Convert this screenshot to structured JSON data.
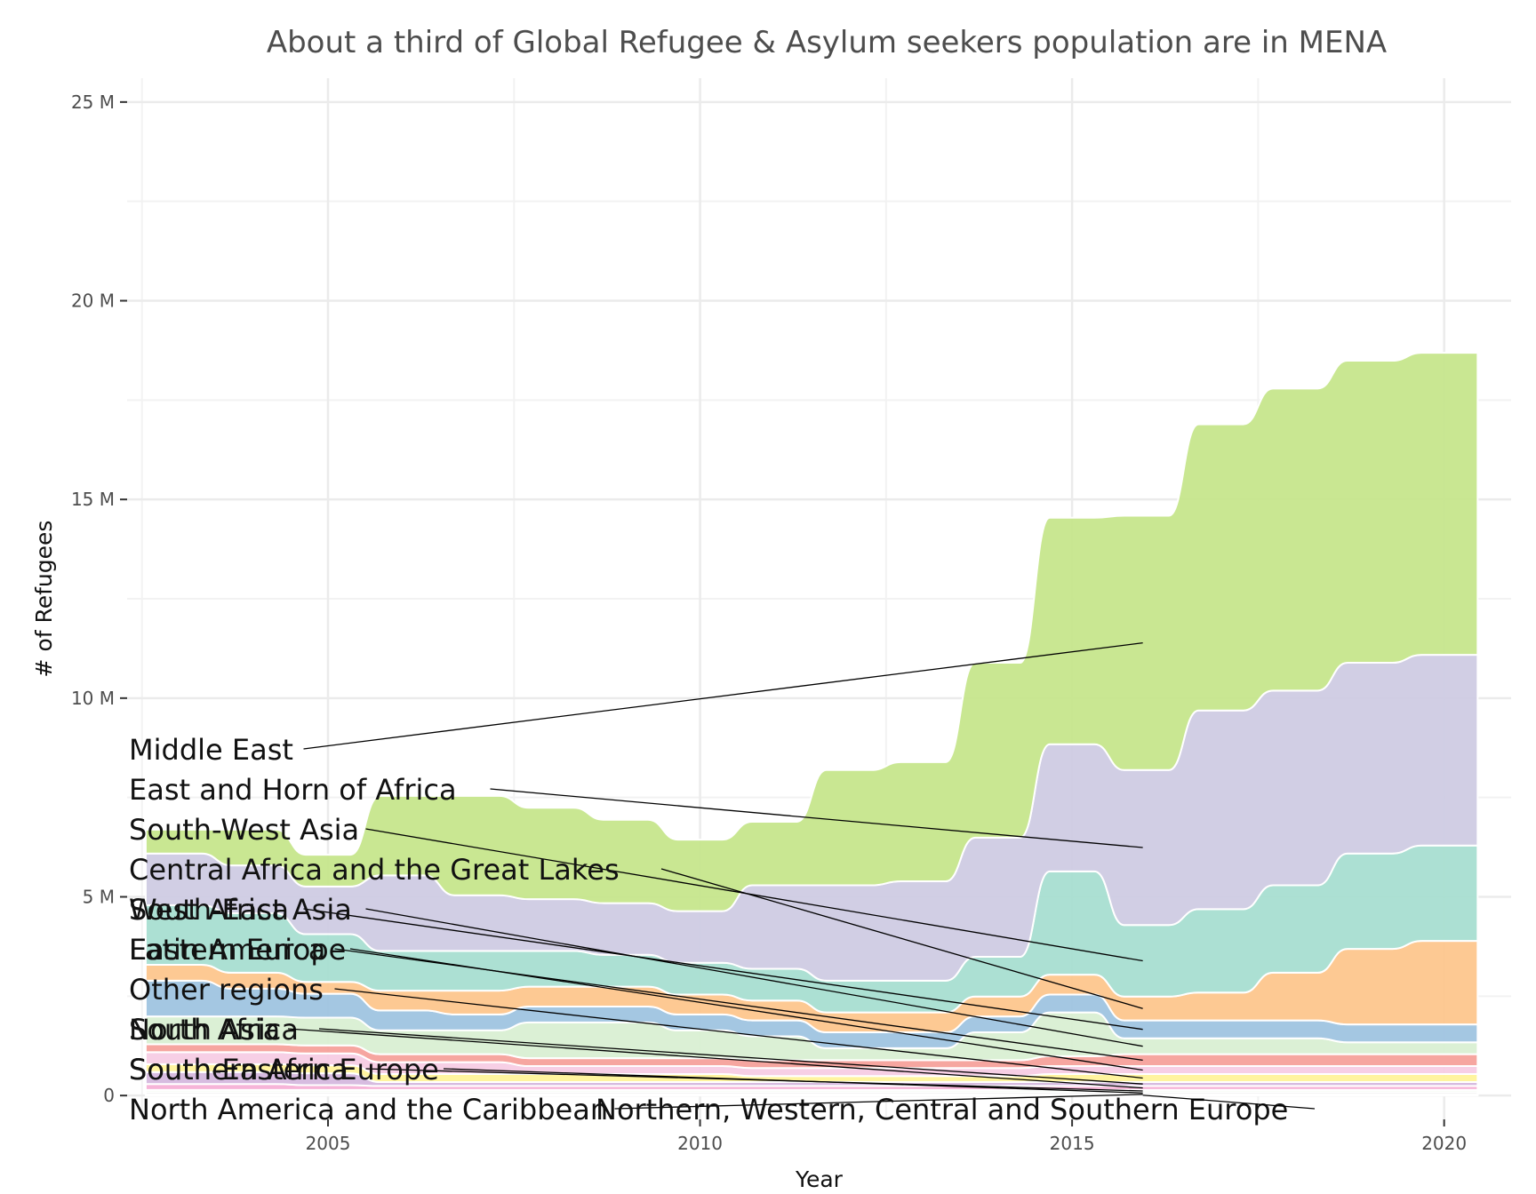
{
  "chart_data": {
    "type": "area",
    "subtype": "bump-stream",
    "title": "About a third of Global Refugee & Asylum seekers population are in MENA",
    "xlabel": "Year",
    "ylabel": "# of Refugees",
    "xlim": [
      2002.3,
      2020.9
    ],
    "ylim": [
      -0.6,
      25.6
    ],
    "x_ticks": [
      2005,
      2010,
      2015,
      2020
    ],
    "x_tick_labels": [
      "2005",
      "2010",
      "2015",
      "2020"
    ],
    "y_ticks": [
      0,
      5,
      10,
      15,
      20,
      25
    ],
    "y_tick_labels": [
      "0",
      "5 M",
      "10 M",
      "15 M",
      "20 M",
      "25 M"
    ],
    "grid": true,
    "legend": "none",
    "label_x": 2015.95,
    "x": [
      2003,
      2004,
      2005,
      2006,
      2007,
      2008,
      2009,
      2010,
      2011,
      2012,
      2013,
      2014,
      2015,
      2016,
      2017,
      2018,
      2019,
      2020
    ],
    "series": [
      {
        "name": "Middle East",
        "color": "#c6e68c",
        "values": [
          0.6,
          0.9,
          0.8,
          2.0,
          2.5,
          2.3,
          2.1,
          1.8,
          1.6,
          2.9,
          3.0,
          4.4,
          5.7,
          6.4,
          7.2,
          7.6,
          7.6,
          7.6
        ]
      },
      {
        "name": "East and Horn of Africa",
        "color": "#cfcbe3",
        "values": [
          1.3,
          1.2,
          1.2,
          1.9,
          1.4,
          1.3,
          1.3,
          1.3,
          2.1,
          2.4,
          2.5,
          3.0,
          3.2,
          3.9,
          5.0,
          4.9,
          4.8,
          4.8
        ]
      },
      {
        "name": "South-West Asia",
        "color": "#a8ded1",
        "values": [
          1.5,
          1.5,
          1.2,
          1.0,
          1.0,
          0.9,
          0.8,
          0.8,
          0.8,
          0.8,
          0.8,
          1.0,
          2.6,
          1.8,
          2.1,
          2.2,
          2.4,
          2.4
        ]
      },
      {
        "name": "Central Africa and the Great Lakes",
        "color": "#fdc68d",
        "values": [
          0.4,
          0.4,
          0.3,
          0.5,
          0.6,
          0.5,
          0.5,
          0.5,
          0.5,
          0.5,
          0.5,
          0.5,
          0.5,
          0.6,
          0.7,
          1.2,
          1.9,
          2.1
        ]
      },
      {
        "name": "West Africa",
        "color": "#9fc4e0",
        "values": [
          0.9,
          0.7,
          0.6,
          0.5,
          0.4,
          0.4,
          0.4,
          0.4,
          0.4,
          0.4,
          0.4,
          0.4,
          0.45,
          0.45,
          0.45,
          0.45,
          0.45,
          0.45
        ]
      },
      {
        "name": "South-East Asia",
        "color": "#d9efd3",
        "values": [
          0.7,
          0.7,
          0.7,
          0.6,
          0.6,
          0.9,
          0.9,
          0.7,
          0.6,
          0.3,
          0.3,
          0.7,
          1.1,
          0.4,
          0.4,
          0.4,
          0.3,
          0.3
        ]
      },
      {
        "name": "Latin America",
        "color": "#f5a19b",
        "values": [
          0.2,
          0.2,
          0.2,
          0.2,
          0.2,
          0.2,
          0.2,
          0.2,
          0.2,
          0.2,
          0.2,
          0.2,
          0.25,
          0.3,
          0.3,
          0.3,
          0.3,
          0.3
        ]
      },
      {
        "name": "Eastern Europe",
        "color": "#f7cce4",
        "values": [
          0.3,
          0.3,
          0.3,
          0.3,
          0.3,
          0.2,
          0.2,
          0.2,
          0.2,
          0.2,
          0.2,
          0.2,
          0.2,
          0.2,
          0.2,
          0.2,
          0.2,
          0.2
        ]
      },
      {
        "name": "Other regions",
        "color": "#fff39a",
        "values": [
          0.2,
          0.2,
          0.2,
          0.2,
          0.2,
          0.2,
          0.2,
          0.2,
          0.15,
          0.15,
          0.15,
          0.15,
          0.2,
          0.2,
          0.2,
          0.2,
          0.2,
          0.2
        ]
      },
      {
        "name": "North Africa",
        "color": "#d5b8de",
        "values": [
          0.3,
          0.3,
          0.3,
          0.1,
          0.1,
          0.1,
          0.1,
          0.1,
          0.1,
          0.1,
          0.1,
          0.1,
          0.1,
          0.1,
          0.1,
          0.1,
          0.1,
          0.1
        ]
      },
      {
        "name": "South Asia",
        "color": "#f6b0d6",
        "values": [
          0.15,
          0.15,
          0.12,
          0.1,
          0.1,
          0.1,
          0.1,
          0.1,
          0.1,
          0.1,
          0.1,
          0.1,
          0.1,
          0.1,
          0.1,
          0.1,
          0.1,
          0.1
        ]
      },
      {
        "name": "Southern Africa",
        "color": "#ccebc5",
        "values": [
          0.05,
          0.05,
          0.05,
          0.05,
          0.05,
          0.05,
          0.05,
          0.05,
          0.05,
          0.05,
          0.05,
          0.05,
          0.05,
          0.05,
          0.05,
          0.05,
          0.05,
          0.05
        ]
      },
      {
        "name": "South-Eastern Europe",
        "color": "#bdbdbd",
        "values": [
          0.05,
          0.05,
          0.05,
          0.05,
          0.05,
          0.05,
          0.05,
          0.05,
          0.05,
          0.05,
          0.05,
          0.05,
          0.05,
          0.05,
          0.05,
          0.05,
          0.05,
          0.05
        ]
      },
      {
        "name": "North America and the Caribbean",
        "color": "#b3de69",
        "values": [
          0.02,
          0.02,
          0.02,
          0.02,
          0.02,
          0.02,
          0.02,
          0.02,
          0.02,
          0.02,
          0.02,
          0.02,
          0.02,
          0.02,
          0.02,
          0.02,
          0.02,
          0.02
        ]
      },
      {
        "name": "Northern, Western, Central and Southern Europe",
        "color": "#80b1d3",
        "values": [
          0.02,
          0.02,
          0.02,
          0.02,
          0.02,
          0.02,
          0.02,
          0.02,
          0.02,
          0.02,
          0.02,
          0.02,
          0.02,
          0.02,
          0.02,
          0.02,
          0.02,
          0.02
        ]
      }
    ],
    "labels": [
      {
        "text": "Middle East",
        "series": "Middle East"
      },
      {
        "text": "East and Horn of Africa",
        "series": "East and Horn of Africa"
      },
      {
        "text": "South-West Asia",
        "series": "South-West Asia"
      },
      {
        "text": "Central Africa and the Great Lakes",
        "series": "Central Africa and the Great Lakes"
      },
      {
        "text": "West Africa",
        "series": "West Africa"
      },
      {
        "text": "South-East Asia",
        "series": "South-East Asia"
      },
      {
        "text": "Latin America",
        "series": "Latin America"
      },
      {
        "text": "Eastern Europe",
        "series": "Eastern Europe"
      },
      {
        "text": "Other regions",
        "series": "Other regions"
      },
      {
        "text": "North Africa",
        "series": "North Africa"
      },
      {
        "text": "South Asia",
        "series": "South Asia"
      },
      {
        "text": "Southern Africa",
        "series": "Southern Africa"
      },
      {
        "text": "South-Eastern Europe",
        "series": "South-Eastern Europe"
      },
      {
        "text": "North America and the Caribbean",
        "series": "North America and the Caribbean"
      },
      {
        "text": "Northern, Western, Central and Southern Europe",
        "series": "Northern, Western, Central and Southern Europe"
      }
    ]
  }
}
